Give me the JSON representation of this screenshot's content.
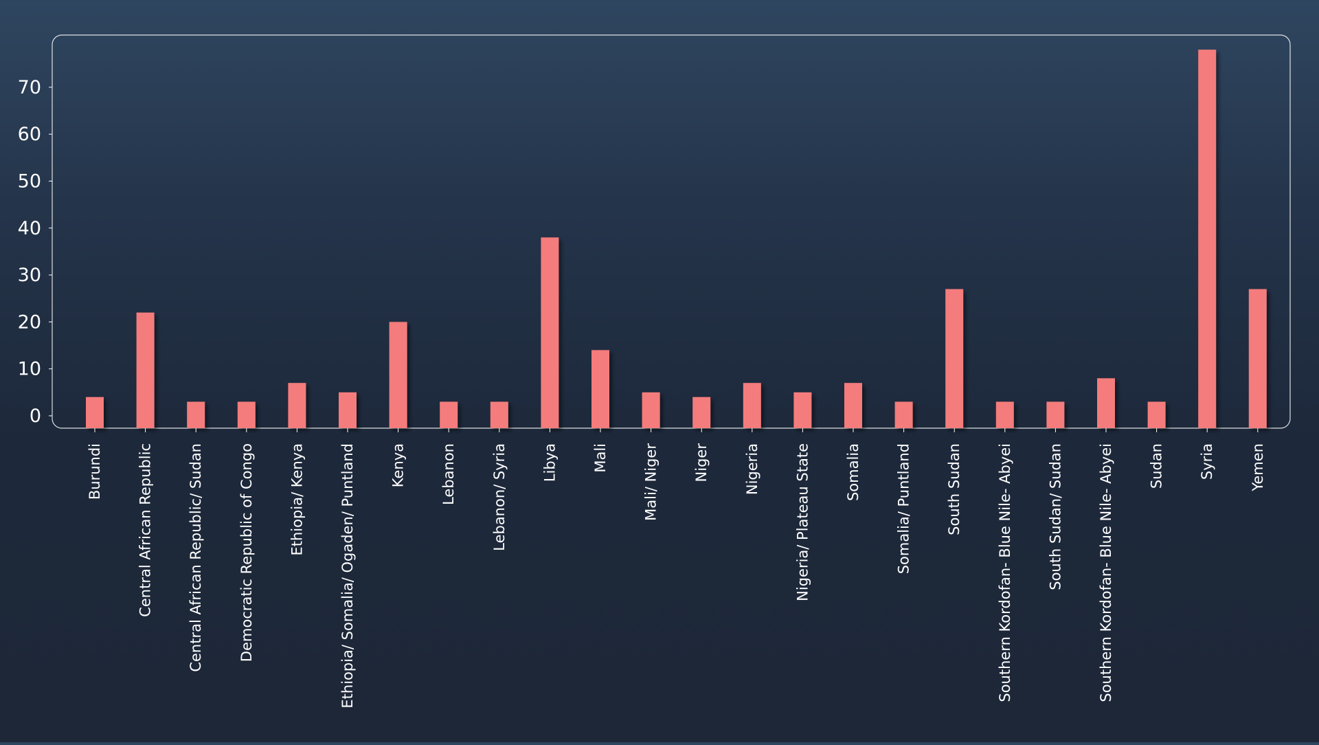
{
  "chart_data": {
    "type": "bar",
    "title": "",
    "xlabel": "",
    "ylabel": "",
    "ylim": [
      0,
      80
    ],
    "yticks": [
      0,
      10,
      20,
      30,
      40,
      50,
      60,
      70
    ],
    "grid": false,
    "categories": [
      "Burundi",
      "Central African Republic",
      "Central African Republic/ Sudan",
      "Democratic Republic of Congo",
      "Ethiopia/ Kenya",
      "Ethiopia/ Somalia/ Ogaden/ Puntland",
      "Kenya",
      "Lebanon",
      "Lebanon/ Syria",
      "Libya",
      "Mali",
      "Mali/ Niger",
      "Niger",
      "Nigeria",
      "Nigeria/ Plateau State",
      "Somalia",
      "Somalia/ Puntland",
      "South Sudan",
      "Southern Kordofan- Blue Nile- Abyei",
      "South Sudan/ Sudan",
      "Southern Kordofan- Blue Nile- Abyei",
      "Sudan",
      "Syria",
      "Yemen"
    ],
    "values": [
      4,
      22,
      3,
      3,
      7,
      5,
      20,
      3,
      3,
      38,
      14,
      5,
      4,
      7,
      5,
      7,
      3,
      27,
      3,
      3,
      8,
      3,
      78,
      27
    ],
    "colors": {
      "bar": "#f47c7c",
      "axis": "#ffffff",
      "frame": "#ffffff"
    }
  }
}
